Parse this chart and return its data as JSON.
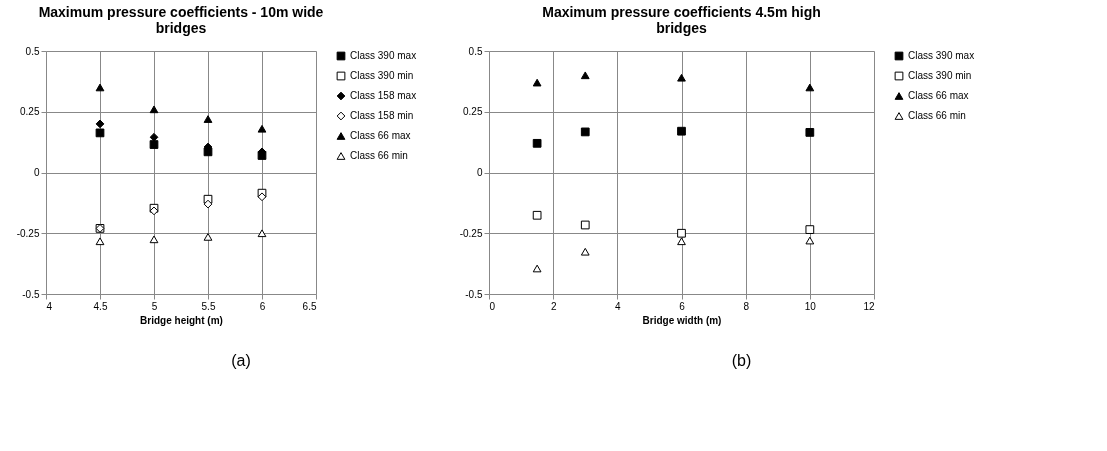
{
  "chart_data": [
    {
      "type": "scatter",
      "title": "Maximum pressure coefficients - 10m wide bridges",
      "xlabel": "Bridge height (m)",
      "x": [
        4.5,
        5,
        5.5,
        6
      ],
      "xlim": [
        4,
        6.5
      ],
      "xticks": [
        4,
        4.5,
        5,
        5.5,
        6,
        6.5
      ],
      "ylim": [
        -0.5,
        0.5
      ],
      "yticks": [
        -0.5,
        -0.25,
        0,
        0.25,
        0.5
      ],
      "grid": true,
      "legend": "right",
      "annotations": [
        "(a)"
      ],
      "series": [
        {
          "name": "Class 390 max",
          "color": "#000000",
          "marker": "square",
          "values": [
            0.163,
            0.115,
            0.085,
            0.07
          ]
        },
        {
          "name": "Class 390 min",
          "color": "#ffffff",
          "marker": "square",
          "values": [
            -0.23,
            -0.147,
            -0.11,
            -0.085
          ]
        },
        {
          "name": "Class 158 max",
          "color": "#000000",
          "marker": "diamond",
          "values": [
            0.2,
            0.145,
            0.105,
            0.085
          ]
        },
        {
          "name": "Class 158 min",
          "color": "#ffffff",
          "marker": "diamond",
          "values": [
            -0.23,
            -0.158,
            -0.13,
            -0.1
          ]
        },
        {
          "name": "Class 66 max",
          "color": "#000000",
          "marker": "triangle",
          "values": [
            0.35,
            0.26,
            0.22,
            0.18
          ]
        },
        {
          "name": "Class 66 min",
          "color": "#ffffff",
          "marker": "triangle",
          "values": [
            -0.283,
            -0.275,
            -0.265,
            -0.25
          ]
        }
      ]
    },
    {
      "type": "scatter",
      "title": "Maximum pressure coefficients 4.5m high bridges",
      "xlabel": "Bridge width (m)",
      "x": [
        1.5,
        3,
        6,
        10
      ],
      "xlim": [
        0,
        12
      ],
      "xticks": [
        0,
        2,
        4,
        6,
        8,
        10,
        12
      ],
      "ylim": [
        -0.5,
        0.5
      ],
      "yticks": [
        -0.5,
        -0.25,
        0,
        0.25,
        0.5
      ],
      "grid": true,
      "legend": "right",
      "annotations": [
        "(b)"
      ],
      "series": [
        {
          "name": "Class 390 max",
          "color": "#000000",
          "marker": "square",
          "values": [
            0.12,
            0.167,
            0.17,
            0.165
          ]
        },
        {
          "name": "Class 390 min",
          "color": "#ffffff",
          "marker": "square",
          "values": [
            -0.176,
            -0.216,
            -0.25,
            -0.235
          ]
        },
        {
          "name": "Class 66 max",
          "color": "#000000",
          "marker": "triangle",
          "values": [
            0.37,
            0.4,
            0.39,
            0.35
          ]
        },
        {
          "name": "Class 66 min",
          "color": "#ffffff",
          "marker": "triangle",
          "values": [
            -0.395,
            -0.326,
            -0.283,
            -0.28
          ]
        }
      ]
    }
  ]
}
